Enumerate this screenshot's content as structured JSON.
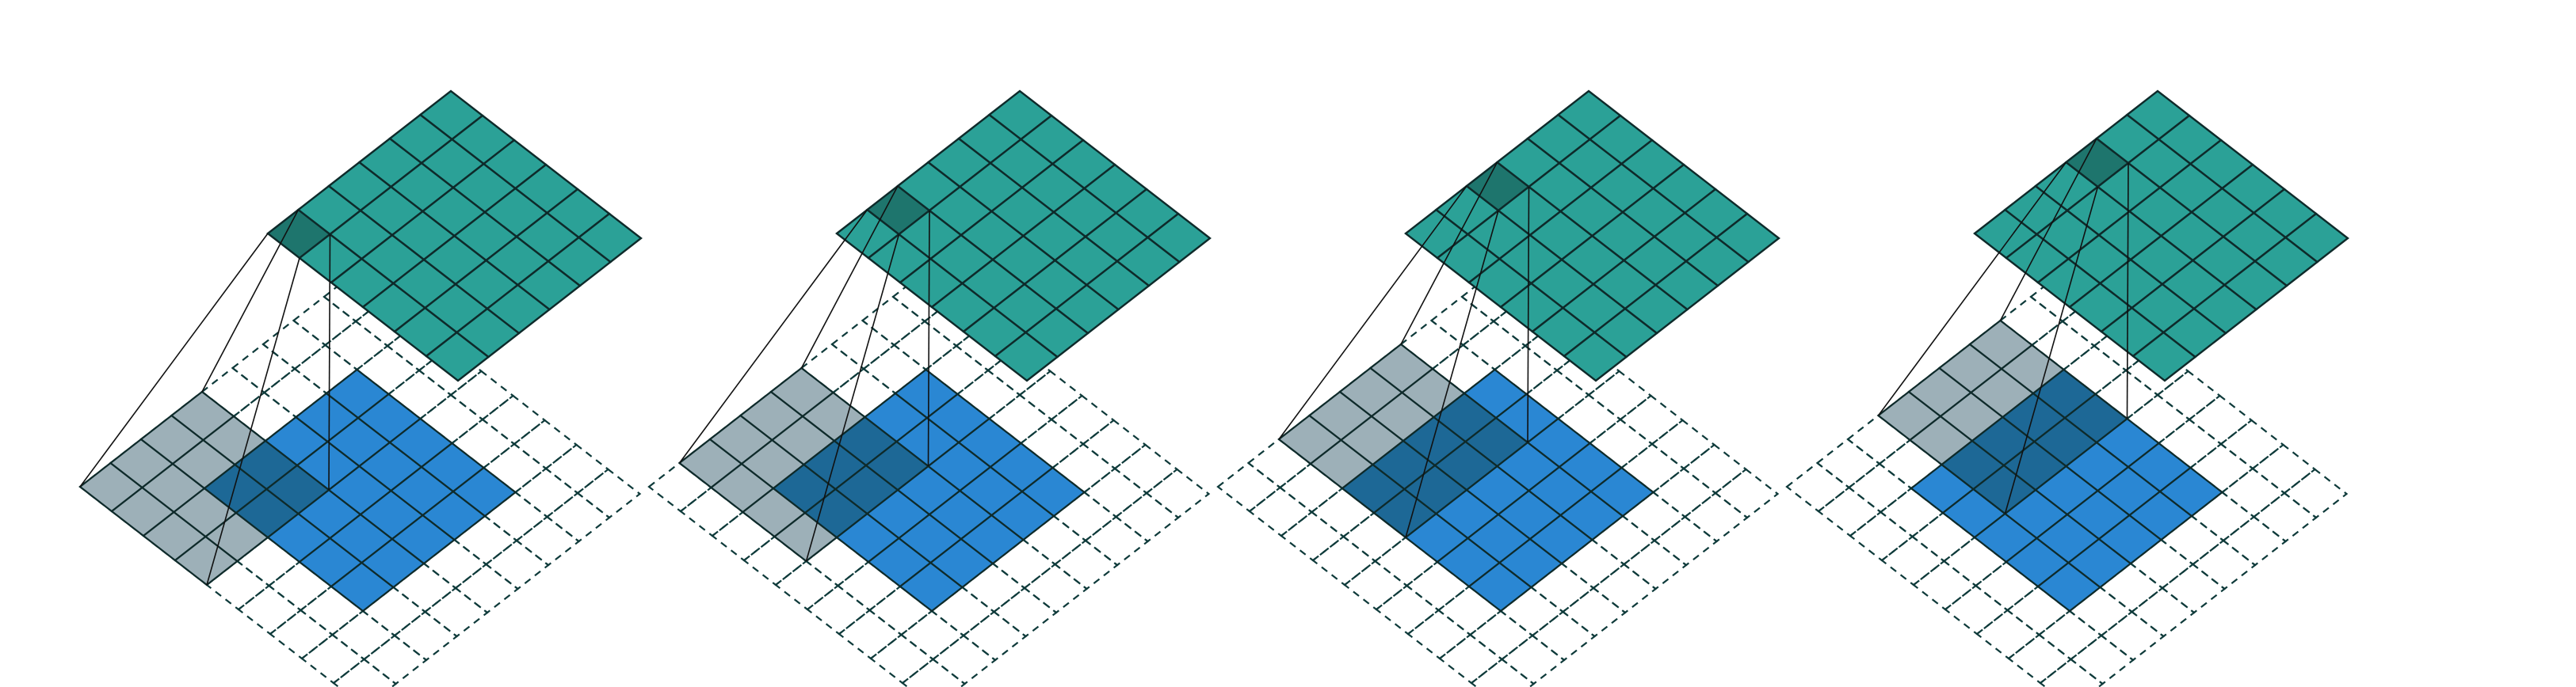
{
  "figure": {
    "kind": "convolution-arithmetic-illustration",
    "panels_count": 4,
    "panels": [
      {
        "output_highlight": [
          0,
          0
        ],
        "input_window_start": [
          -2,
          -2
        ]
      },
      {
        "output_highlight": [
          0,
          1
        ],
        "input_window_start": [
          -2,
          -1
        ]
      },
      {
        "output_highlight": [
          0,
          2
        ],
        "input_window_start": [
          -2,
          0
        ]
      },
      {
        "output_highlight": [
          0,
          3
        ],
        "input_window_start": [
          -2,
          1
        ]
      }
    ],
    "input": {
      "size": 5,
      "padding": 2
    },
    "kernel": {
      "size": 4
    },
    "output": {
      "size": 6
    },
    "colors": {
      "input_cell": "#2a87d3",
      "input_cell_highlight": "#1d6896",
      "padding_highlight": "#9db0b8",
      "output_cell": "#2ba197",
      "output_cell_highlight": "#1e756d",
      "grid_line": "#0e2a2a",
      "padding_dash": "#0e3a3a",
      "projection_line": "#111111"
    }
  }
}
